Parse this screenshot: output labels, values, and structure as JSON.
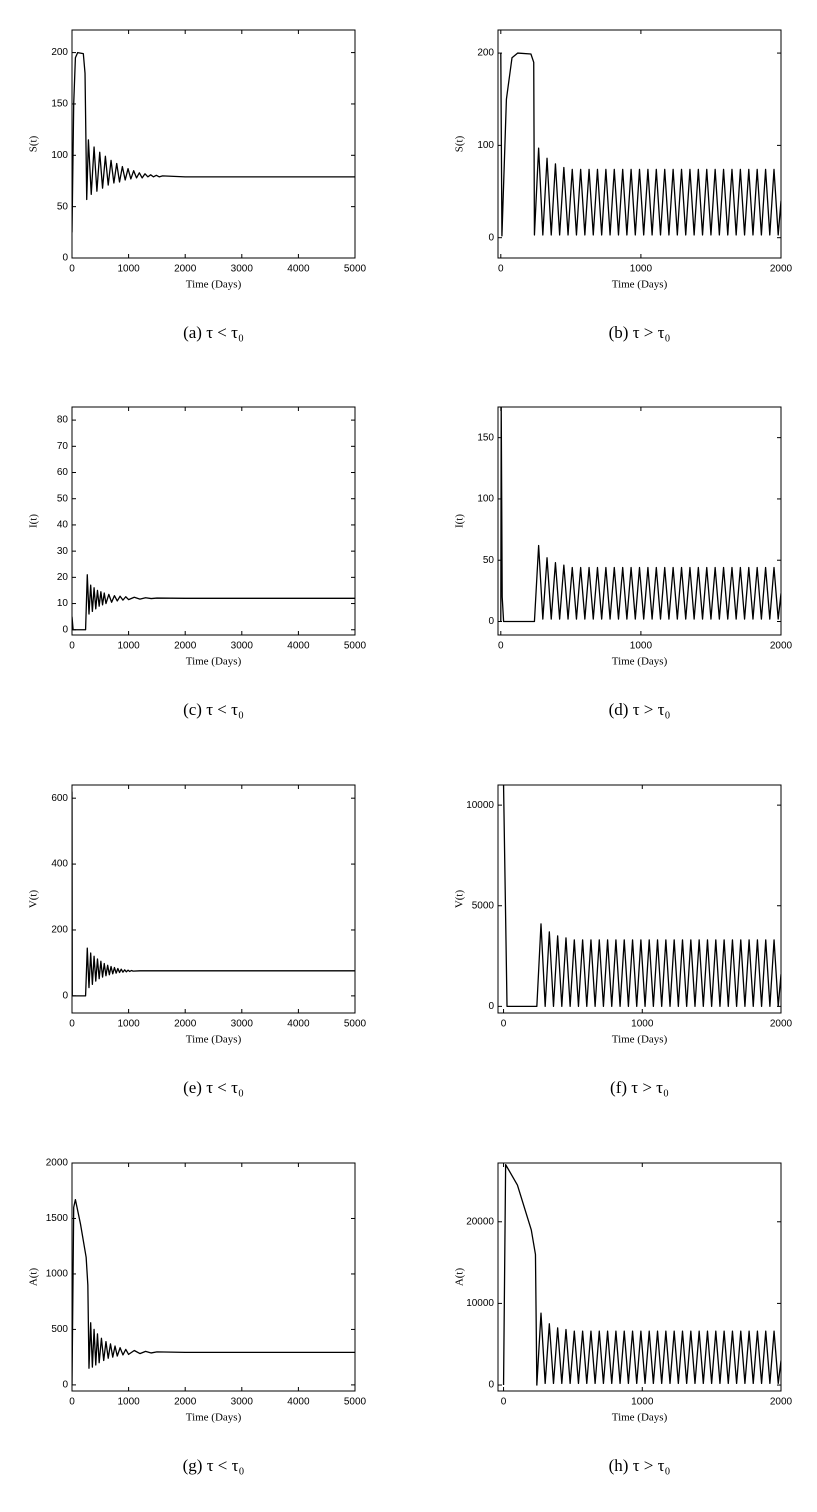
{
  "chart_data": [
    {
      "type": "line",
      "caption": "(a) τ < τ₀",
      "y_label": "S(t)",
      "x_label": "Time (Days)",
      "color": "#000000",
      "xlim": [
        0,
        5000
      ],
      "ylim": [
        0,
        222
      ],
      "xticks": [
        0,
        1000,
        2000,
        3000,
        4000,
        5000
      ],
      "yticks": [
        0,
        50,
        100,
        150,
        200
      ],
      "x": [
        0,
        30,
        60,
        100,
        200,
        230,
        260,
        290,
        340,
        390,
        440,
        490,
        540,
        590,
        640,
        690,
        740,
        790,
        840,
        890,
        940,
        990,
        1040,
        1090,
        1140,
        1190,
        1240,
        1290,
        1340,
        1390,
        1440,
        1490,
        1540,
        1600,
        2000,
        5000
      ],
      "values": [
        25,
        150,
        195,
        200,
        199,
        180,
        57,
        115,
        62,
        108,
        65,
        103,
        68,
        99,
        71,
        95,
        73,
        92,
        74,
        89,
        76,
        87,
        77,
        85,
        78,
        83,
        78,
        82,
        79,
        81,
        79,
        80.5,
        79,
        80,
        79,
        79
      ]
    },
    {
      "type": "line",
      "caption": "(b) τ > τ₀",
      "y_label": "S(t)",
      "x_label": "Time (Days)",
      "color": "#000000",
      "xlim": [
        -20,
        2000
      ],
      "ylim": [
        -22,
        225
      ],
      "xticks": [
        0,
        1000,
        2000
      ],
      "yticks": [
        0,
        100,
        200
      ],
      "x": [
        0,
        8,
        40,
        80,
        120,
        215,
        235,
        240,
        270,
        300,
        330,
        360,
        390,
        420,
        450,
        480,
        510,
        540,
        570,
        600,
        630,
        660,
        690,
        720,
        750,
        780,
        810,
        840,
        870,
        900,
        930,
        960,
        990,
        1020,
        1050,
        1080,
        1110,
        1140,
        1170,
        1200,
        1230,
        1260,
        1290,
        1320,
        1350,
        1380,
        1410,
        1440,
        1470,
        1500,
        1530,
        1560,
        1590,
        1620,
        1650,
        1680,
        1710,
        1740,
        1770,
        1800,
        1830,
        1860,
        1890,
        1920,
        1950,
        1980,
        2000
      ],
      "values": [
        200,
        2,
        150,
        195,
        200,
        199,
        190,
        3,
        97,
        3,
        86,
        3,
        80,
        3,
        76,
        3,
        74,
        3,
        74,
        3,
        74,
        3,
        74,
        3,
        74,
        3,
        74,
        3,
        74,
        3,
        74,
        3,
        74,
        3,
        74,
        3,
        74,
        3,
        74,
        3,
        74,
        3,
        74,
        3,
        74,
        3,
        74,
        3,
        74,
        3,
        74,
        3,
        74,
        3,
        74,
        3,
        74,
        3,
        74,
        3,
        74,
        3,
        74,
        3,
        74,
        3,
        40
      ]
    },
    {
      "type": "line",
      "caption": "(c) τ < τ₀",
      "y_label": "I(t)",
      "x_label": "Time (Days)",
      "color": "#000000",
      "xlim": [
        0,
        5000
      ],
      "ylim": [
        -2,
        85
      ],
      "xticks": [
        0,
        1000,
        2000,
        3000,
        4000,
        5000
      ],
      "yticks": [
        0,
        10,
        20,
        30,
        40,
        50,
        60,
        70,
        80
      ],
      "x": [
        0,
        20,
        240,
        270,
        300,
        330,
        360,
        390,
        420,
        450,
        480,
        510,
        540,
        570,
        600,
        650,
        700,
        750,
        800,
        850,
        900,
        950,
        1000,
        1100,
        1200,
        1300,
        1400,
        1500,
        2000,
        5000
      ],
      "values": [
        5,
        0,
        0,
        21,
        6,
        17,
        7,
        16,
        8,
        15,
        9,
        14.5,
        9.5,
        14,
        10,
        13.5,
        10.5,
        13,
        11,
        12.8,
        11.3,
        12.6,
        11.5,
        12.4,
        11.7,
        12.2,
        11.9,
        12.1,
        12,
        12
      ]
    },
    {
      "type": "line",
      "caption": "(d) τ > τ₀",
      "y_label": "I(t)",
      "x_label": "Time (Days)",
      "color": "#000000",
      "xlim": [
        -20,
        2000
      ],
      "ylim": [
        -11,
        175
      ],
      "xticks": [
        0,
        1000,
        2000
      ],
      "yticks": [
        0,
        50,
        100,
        150
      ],
      "x": [
        0,
        3,
        10,
        20,
        230,
        240,
        270,
        300,
        330,
        360,
        390,
        420,
        450,
        480,
        510,
        540,
        570,
        600,
        630,
        660,
        690,
        720,
        750,
        780,
        810,
        840,
        870,
        900,
        930,
        960,
        990,
        1020,
        1050,
        1080,
        1110,
        1140,
        1170,
        1200,
        1230,
        1260,
        1290,
        1320,
        1350,
        1380,
        1410,
        1440,
        1470,
        1500,
        1530,
        1560,
        1590,
        1620,
        1650,
        1680,
        1710,
        1740,
        1770,
        1800,
        1830,
        1860,
        1890,
        1920,
        1950,
        1980,
        2000
      ],
      "values": [
        0,
        175,
        20,
        0,
        0,
        0,
        62,
        2,
        52,
        2,
        48,
        2,
        46,
        2,
        44,
        2,
        44,
        2,
        44,
        2,
        44,
        2,
        44,
        2,
        44,
        2,
        44,
        2,
        44,
        2,
        44,
        2,
        44,
        2,
        44,
        2,
        44,
        2,
        44,
        2,
        44,
        2,
        44,
        2,
        44,
        2,
        44,
        2,
        44,
        2,
        44,
        2,
        44,
        2,
        44,
        2,
        44,
        2,
        44,
        2,
        44,
        2,
        44,
        2,
        23
      ]
    },
    {
      "type": "line",
      "caption": "(e) τ < τ₀",
      "y_label": "V(t)",
      "x_label": "Time (Days)",
      "color": "#000000",
      "xlim": [
        0,
        5000
      ],
      "ylim": [
        -52,
        640
      ],
      "xticks": [
        0,
        1000,
        2000,
        3000,
        4000,
        5000
      ],
      "yticks": [
        0,
        200,
        400,
        600
      ],
      "x": [
        0,
        5,
        240,
        270,
        300,
        330,
        360,
        390,
        420,
        450,
        480,
        510,
        540,
        570,
        600,
        630,
        660,
        690,
        720,
        750,
        780,
        810,
        840,
        870,
        900,
        930,
        960,
        990,
        1020,
        1050,
        1080,
        1200,
        5000
      ],
      "values": [
        620,
        0,
        0,
        145,
        25,
        130,
        35,
        120,
        45,
        112,
        52,
        105,
        57,
        98,
        61,
        93,
        64,
        89,
        67,
        86,
        69,
        83,
        71,
        81,
        72,
        79,
        73,
        78,
        74,
        77,
        75,
        76,
        76
      ]
    },
    {
      "type": "line",
      "caption": "(f) τ > τ₀",
      "y_label": "V(t)",
      "x_label": "Time (Days)",
      "color": "#000000",
      "xlim": [
        -40,
        2000
      ],
      "ylim": [
        -330,
        11000
      ],
      "xticks": [
        0,
        1000,
        2000
      ],
      "yticks": [
        0,
        5000,
        10000
      ],
      "x": [
        0,
        25,
        230,
        240,
        270,
        300,
        330,
        360,
        390,
        420,
        450,
        480,
        510,
        540,
        570,
        600,
        630,
        660,
        690,
        720,
        750,
        780,
        810,
        840,
        870,
        900,
        930,
        960,
        990,
        1020,
        1050,
        1080,
        1110,
        1140,
        1170,
        1200,
        1230,
        1260,
        1290,
        1320,
        1350,
        1380,
        1410,
        1440,
        1470,
        1500,
        1530,
        1560,
        1590,
        1620,
        1650,
        1680,
        1710,
        1740,
        1770,
        1800,
        1830,
        1860,
        1890,
        1920,
        1950,
        1980,
        2000
      ],
      "values": [
        11000,
        0,
        0,
        0,
        4100,
        0,
        3700,
        0,
        3500,
        0,
        3400,
        0,
        3300,
        0,
        3300,
        0,
        3300,
        0,
        3300,
        0,
        3300,
        0,
        3300,
        0,
        3300,
        0,
        3300,
        0,
        3300,
        0,
        3300,
        0,
        3300,
        0,
        3300,
        0,
        3300,
        0,
        3300,
        0,
        3300,
        0,
        3300,
        0,
        3300,
        0,
        3300,
        0,
        3300,
        0,
        3300,
        0,
        3300,
        0,
        3300,
        0,
        3300,
        0,
        3300,
        0,
        3300,
        0,
        1600
      ]
    },
    {
      "type": "line",
      "caption": "(g) τ < τ₀",
      "y_label": "A(t)",
      "x_label": "Time (Days)",
      "color": "#000000",
      "xlim": [
        0,
        5000
      ],
      "ylim": [
        -55,
        2000
      ],
      "xticks": [
        0,
        1000,
        2000,
        3000,
        4000,
        5000
      ],
      "yticks": [
        0,
        500,
        1000,
        1500,
        2000
      ],
      "x": [
        0,
        30,
        60,
        150,
        250,
        280,
        300,
        330,
        360,
        390,
        420,
        450,
        480,
        520,
        560,
        600,
        640,
        680,
        720,
        760,
        800,
        850,
        900,
        950,
        1000,
        1100,
        1200,
        1300,
        1400,
        1500,
        2000,
        5000
      ],
      "values": [
        0,
        1600,
        1670,
        1450,
        1150,
        900,
        150,
        560,
        160,
        500,
        180,
        460,
        200,
        420,
        220,
        390,
        240,
        370,
        250,
        350,
        260,
        335,
        270,
        320,
        275,
        310,
        282,
        302,
        288,
        298,
        293,
        293
      ]
    },
    {
      "type": "line",
      "caption": "(h) τ > τ₀",
      "y_label": "A(t)",
      "x_label": "Time (Days)",
      "color": "#000000",
      "xlim": [
        -40,
        2000
      ],
      "ylim": [
        -730,
        27200
      ],
      "xticks": [
        0,
        1000,
        2000
      ],
      "yticks": [
        0,
        10000,
        20000
      ],
      "x": [
        0,
        15,
        100,
        200,
        230,
        240,
        270,
        300,
        330,
        360,
        390,
        420,
        450,
        480,
        510,
        540,
        570,
        600,
        630,
        660,
        690,
        720,
        750,
        780,
        810,
        840,
        870,
        900,
        930,
        960,
        990,
        1020,
        1050,
        1080,
        1110,
        1140,
        1170,
        1200,
        1230,
        1260,
        1290,
        1320,
        1350,
        1380,
        1410,
        1440,
        1470,
        1500,
        1530,
        1560,
        1590,
        1620,
        1650,
        1680,
        1710,
        1740,
        1770,
        1800,
        1830,
        1860,
        1890,
        1920,
        1950,
        1980,
        2000
      ],
      "values": [
        0,
        27000,
        24500,
        19000,
        16000,
        0,
        8800,
        200,
        7500,
        200,
        7000,
        200,
        6800,
        200,
        6600,
        200,
        6600,
        200,
        6600,
        200,
        6600,
        200,
        6600,
        200,
        6600,
        200,
        6600,
        200,
        6600,
        200,
        6600,
        200,
        6600,
        200,
        6600,
        200,
        6600,
        200,
        6600,
        200,
        6600,
        200,
        6600,
        200,
        6600,
        200,
        6600,
        200,
        6600,
        200,
        6600,
        200,
        6600,
        200,
        6600,
        200,
        6600,
        200,
        6600,
        200,
        6600,
        200,
        6600,
        200,
        3000
      ]
    }
  ]
}
